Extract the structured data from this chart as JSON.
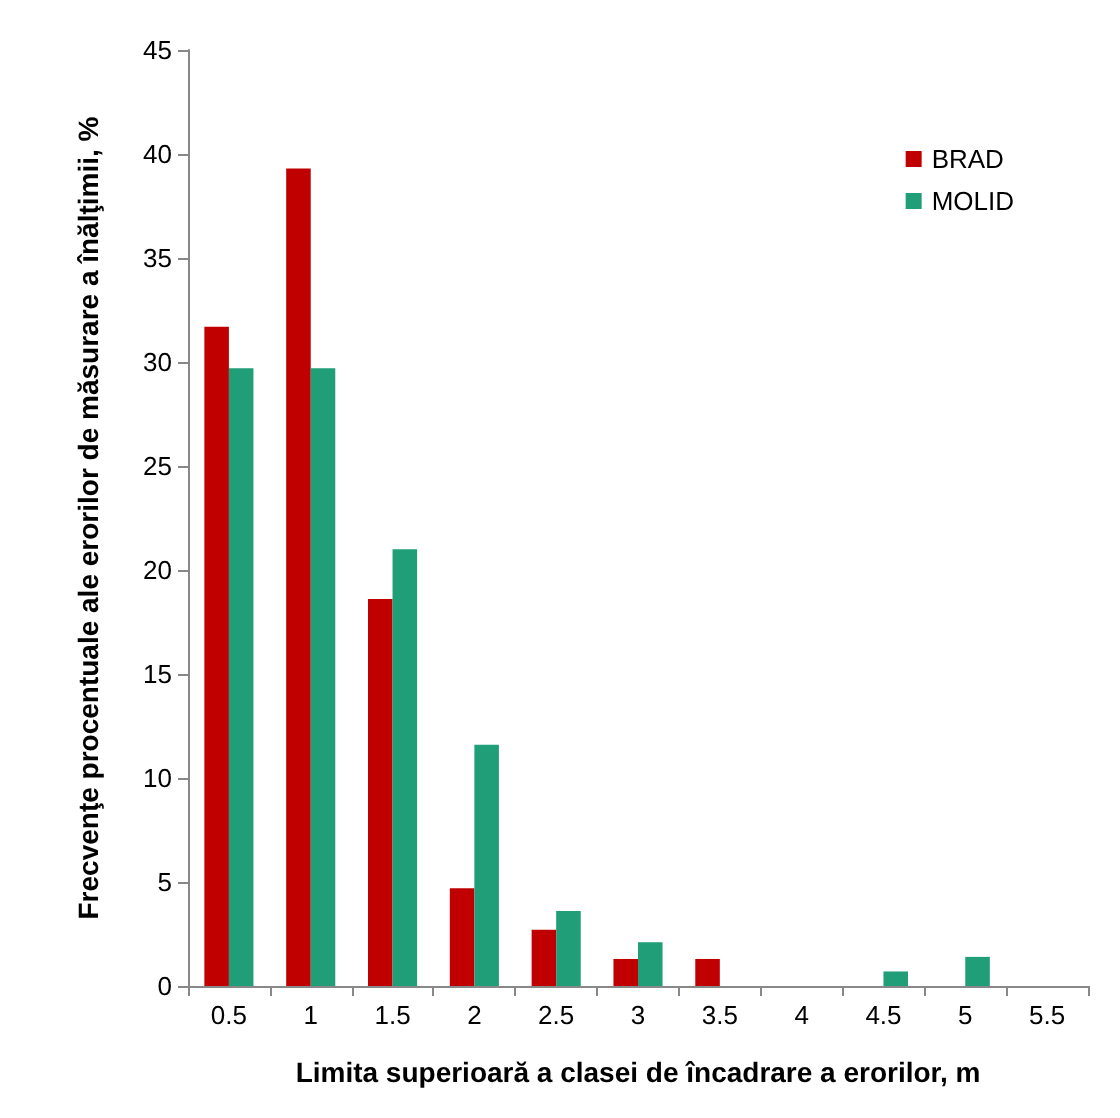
{
  "chart_data": {
    "type": "bar",
    "xlabel": "Limita superioară a clasei de încadrare a erorilor, m",
    "ylabel": "Frecvenţe procentuale ale erorilor de măsurare a înălţimii, %",
    "categories": [
      "0.5",
      "1",
      "1.5",
      "2",
      "2.5",
      "3",
      "3.5",
      "4",
      "4.5",
      "5",
      "5.5"
    ],
    "series": [
      {
        "name": "BRAD",
        "color": "#c00000",
        "values": [
          31.7,
          39.3,
          18.6,
          4.7,
          2.7,
          1.3,
          1.3,
          0,
          0,
          0,
          0
        ]
      },
      {
        "name": "MOLID",
        "color": "#1f9e78",
        "values": [
          29.7,
          29.7,
          21.0,
          11.6,
          3.6,
          2.1,
          0,
          0,
          0.7,
          1.4,
          0
        ]
      }
    ],
    "ylim": [
      0,
      45
    ],
    "yticks": [
      0,
      5,
      10,
      15,
      20,
      25,
      30,
      35,
      40,
      45
    ],
    "grid": false,
    "legend": "top right"
  }
}
